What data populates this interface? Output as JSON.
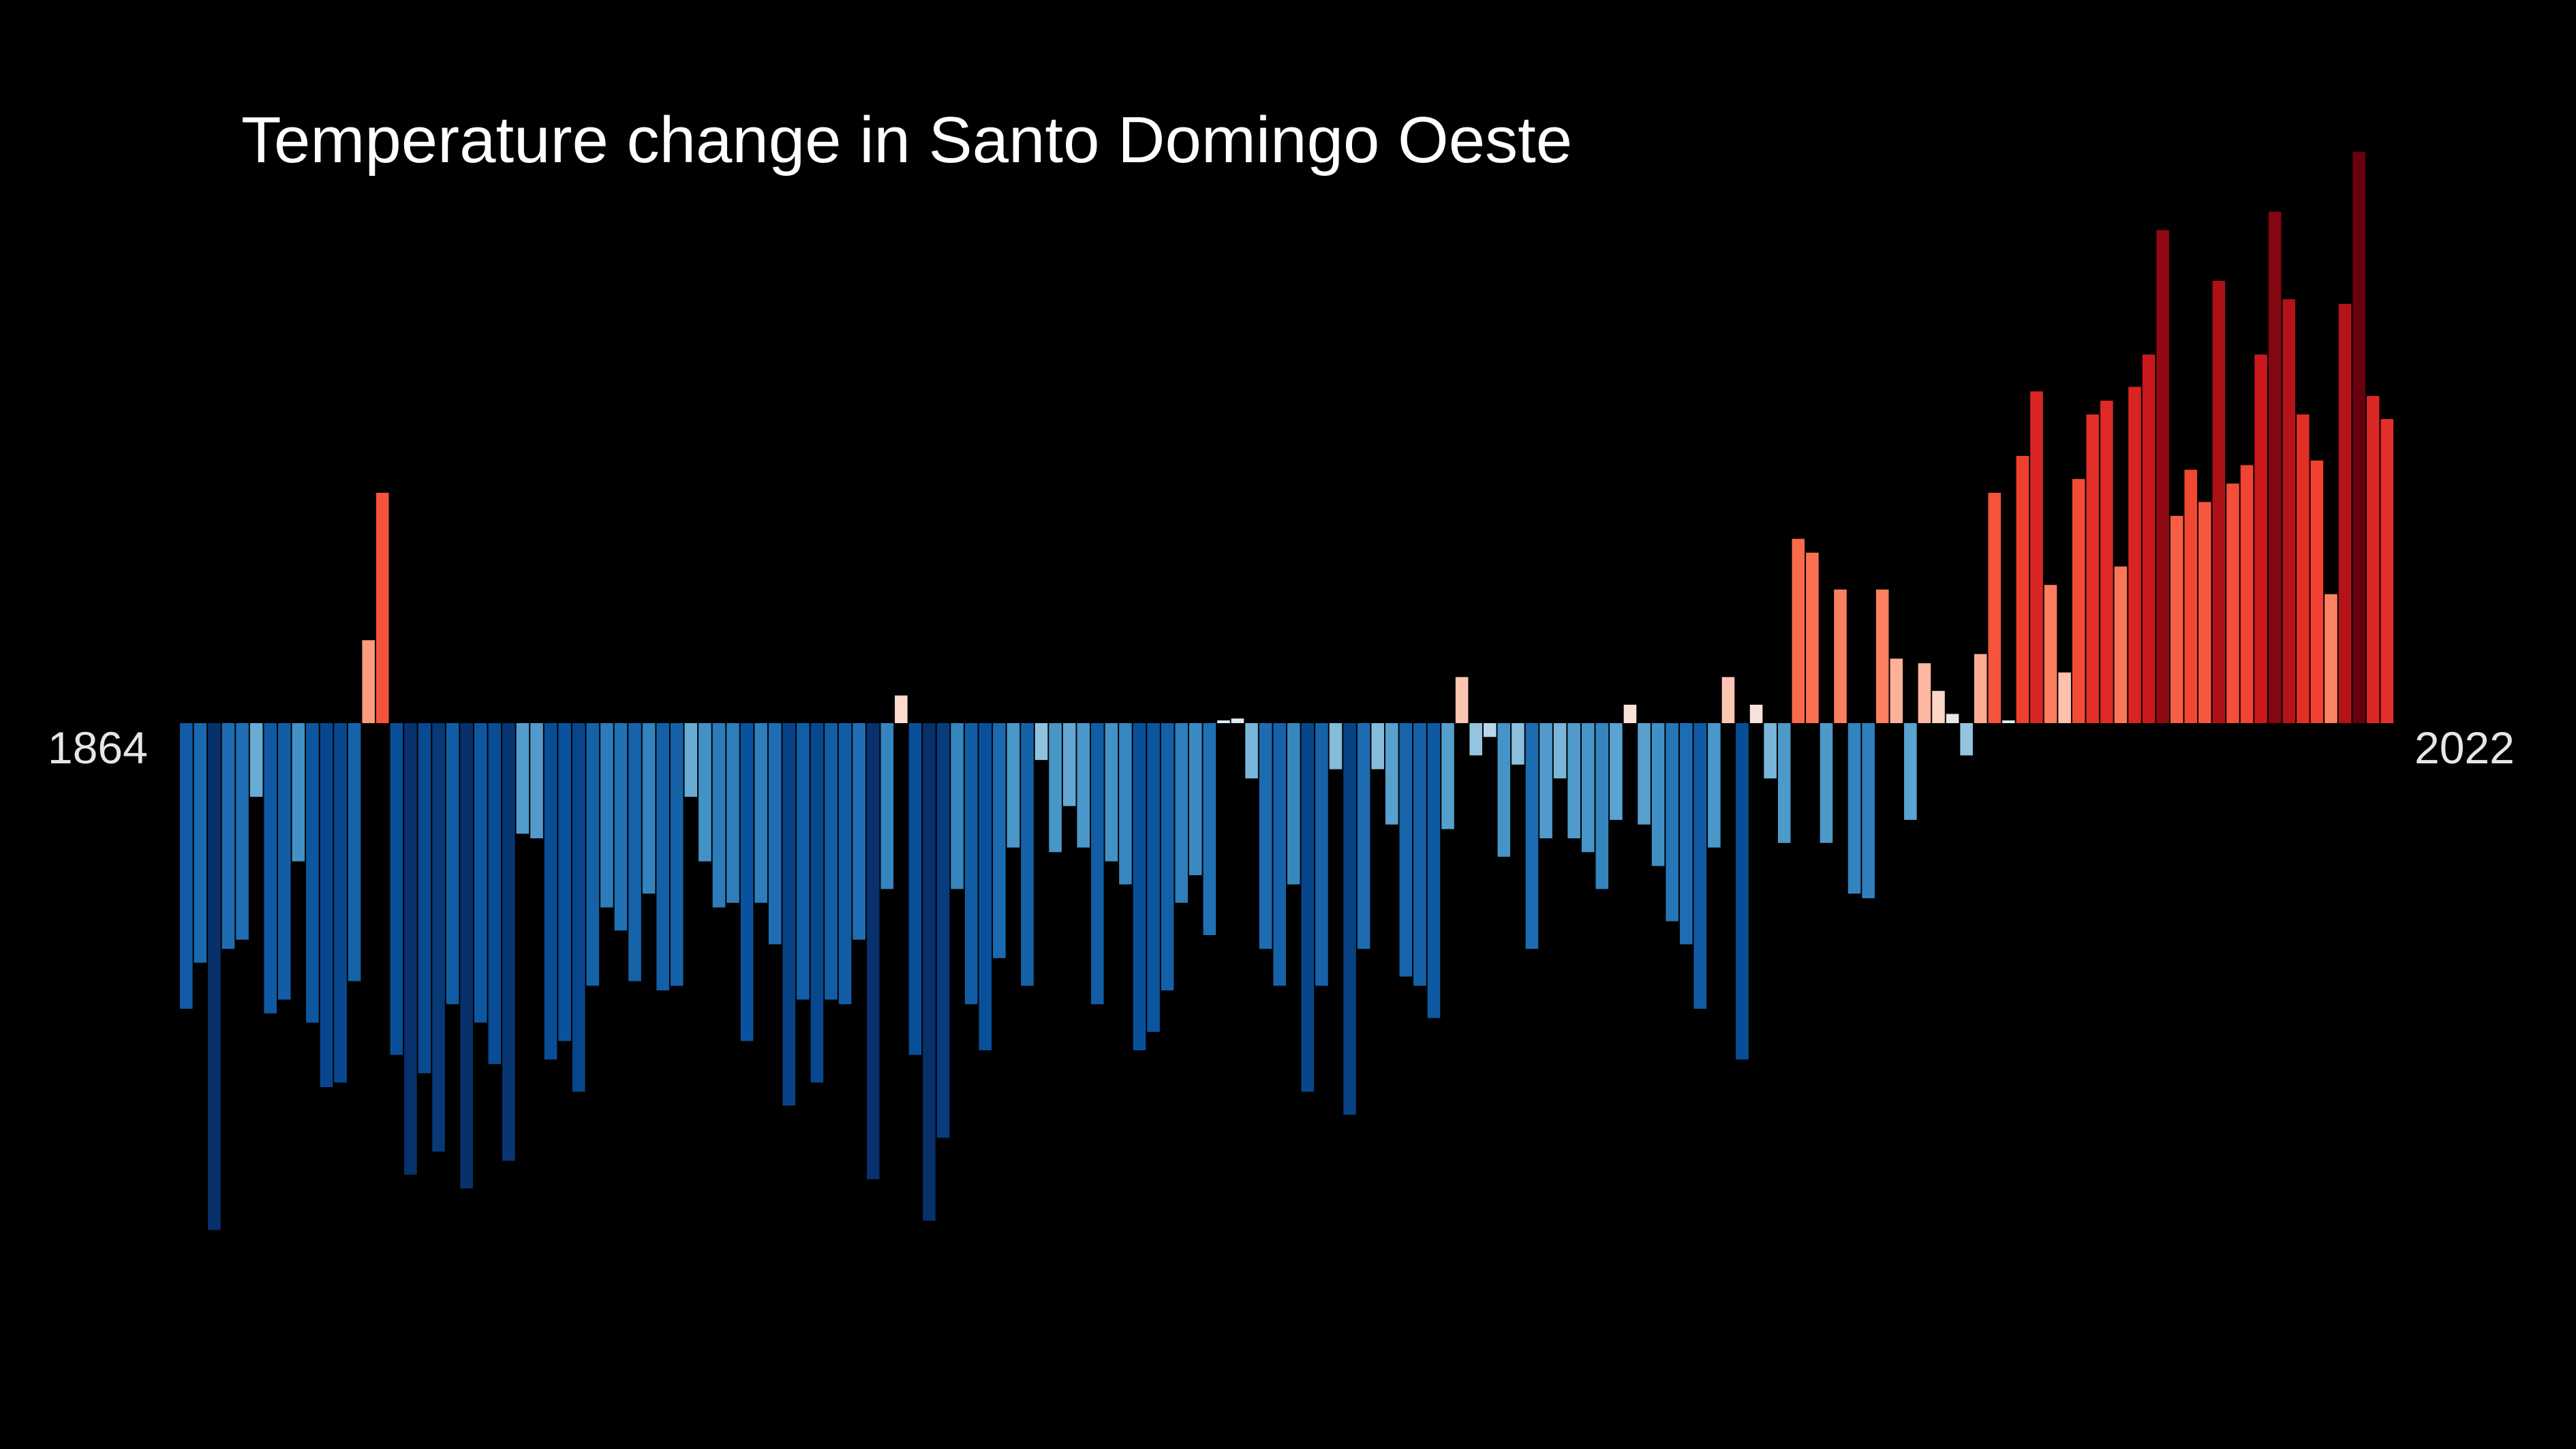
{
  "chart_data": {
    "type": "bar",
    "title": "Temperature change in Santo Domingo Oeste",
    "start_year": "1864",
    "end_year": "2022",
    "x_start": 1864,
    "x_end": 2022,
    "baseline": 0,
    "ylim": [
      -1.1,
      1.25
    ],
    "grid": false,
    "legend": "none",
    "colors": {
      "background": "#000000",
      "title": "#ffffff",
      "year_label": "#e6e6e6"
    },
    "values": [
      -0.62,
      -0.52,
      -1.1,
      -0.49,
      -0.47,
      -0.16,
      -0.63,
      -0.6,
      -0.3,
      -0.65,
      -0.79,
      -0.78,
      -0.56,
      0.18,
      0.5,
      -0.72,
      -0.98,
      -0.76,
      -0.93,
      -0.61,
      -1.01,
      -0.65,
      -0.74,
      -0.95,
      -0.24,
      -0.25,
      -0.73,
      -0.69,
      -0.8,
      -0.57,
      -0.4,
      -0.45,
      -0.56,
      -0.37,
      -0.58,
      -0.57,
      -0.16,
      -0.3,
      -0.4,
      -0.39,
      -0.69,
      -0.39,
      -0.48,
      -0.83,
      -0.6,
      -0.78,
      -0.6,
      -0.61,
      -0.47,
      -0.99,
      -0.36,
      0.06,
      -0.72,
      -1.08,
      -0.9,
      -0.36,
      -0.61,
      -0.71,
      -0.51,
      -0.27,
      -0.57,
      -0.08,
      -0.28,
      -0.18,
      -0.27,
      -0.61,
      -0.3,
      -0.35,
      -0.71,
      -0.67,
      -0.58,
      -0.39,
      -0.33,
      -0.46,
      0.0,
      0.01,
      -0.12,
      -0.49,
      -0.57,
      -0.35,
      -0.8,
      -0.57,
      -0.1,
      -0.85,
      -0.49,
      -0.1,
      -0.22,
      -0.55,
      -0.57,
      -0.64,
      -0.23,
      0.1,
      -0.07,
      -0.03,
      -0.29,
      -0.09,
      -0.49,
      -0.25,
      -0.12,
      -0.25,
      -0.28,
      -0.36,
      -0.21,
      0.04,
      -0.22,
      -0.31,
      -0.43,
      -0.48,
      -0.62,
      -0.27,
      0.1,
      -0.73,
      0.04,
      -0.12,
      -0.26,
      0.4,
      0.37,
      -0.26,
      0.29,
      -0.37,
      -0.38,
      0.29,
      0.14,
      -0.21,
      0.13,
      0.07,
      0.02,
      -0.07,
      0.15,
      0.5,
      0.0,
      0.58,
      0.72,
      0.3,
      0.11,
      0.53,
      0.67,
      0.7,
      0.34,
      0.73,
      0.8,
      1.07,
      0.45,
      0.55,
      0.48,
      0.96,
      0.52,
      0.56,
      0.8,
      1.11,
      0.92,
      0.67,
      0.57,
      0.28,
      0.91,
      1.24,
      0.71,
      0.66
    ]
  }
}
